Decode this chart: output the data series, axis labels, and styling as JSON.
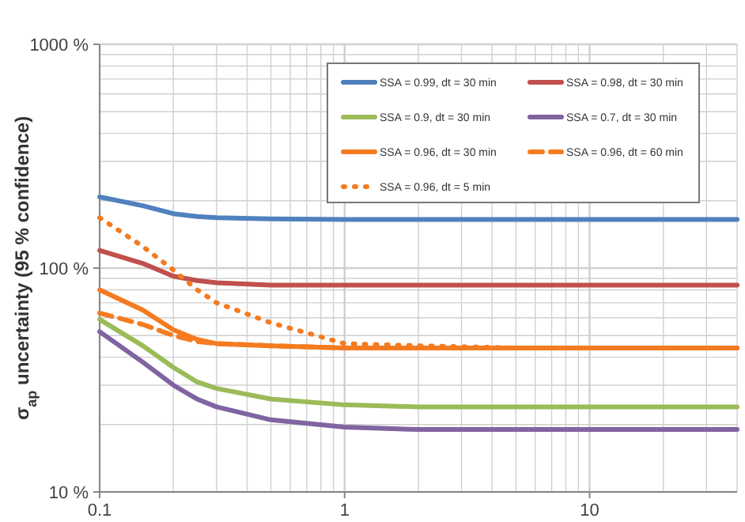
{
  "chart_data": {
    "type": "line",
    "ylabel": "σ$_{ap}$ uncertainty (95 % confidence)",
    "log": "xy",
    "grid": true,
    "legend": "top right",
    "xlim": [
      0.1,
      40
    ],
    "ylim": [
      10,
      1000
    ],
    "xticks": [
      0.1,
      1,
      10
    ],
    "yticks": [
      {
        "value": 10,
        "label": "10 %"
      },
      {
        "value": 100,
        "label": "100 %"
      },
      {
        "value": 1000,
        "label": "1000 %"
      }
    ],
    "x": [
      0.1,
      0.15,
      0.2,
      0.25,
      0.3,
      0.5,
      1,
      2,
      5,
      10,
      40
    ],
    "series": [
      {
        "name": "SSA = 0.99, dt = 30 min",
        "color": "#4f81bd",
        "values": [
          208,
          190,
          175,
          170,
          168,
          166,
          165,
          165,
          165,
          165,
          165
        ]
      },
      {
        "name": "SSA = 0.98, dt = 30 min",
        "color": "#c0504d",
        "values": [
          120,
          105,
          92,
          88,
          86,
          84,
          84,
          84,
          84,
          84,
          84
        ]
      },
      {
        "name": "SSA = 0.9, dt = 30 min",
        "color": "#9bbb59",
        "values": [
          59,
          45,
          36,
          31,
          29,
          26,
          24.5,
          24,
          24,
          24,
          24
        ]
      },
      {
        "name": "SSA = 0.7, dt = 30 min",
        "color": "#8064a2",
        "values": [
          52,
          38,
          30,
          26,
          24,
          21,
          19.5,
          19,
          19,
          19,
          19
        ]
      },
      {
        "name": "SSA = 0.96, dt = 30 min",
        "color": "#f47b20",
        "values": [
          80,
          65,
          53,
          48,
          46,
          45,
          44,
          44,
          44,
          44,
          44
        ]
      },
      {
        "name": "SSA = 0.96, dt = 60 min",
        "color": "#f47b20",
        "line_style": "dashed",
        "values": [
          63,
          56,
          50,
          47,
          46,
          45,
          44,
          44,
          44,
          44,
          44
        ]
      },
      {
        "name": "SSA = 0.96, dt = 5 min",
        "color": "#f47b20",
        "line_style": "dotted",
        "values": [
          168,
          125,
          98,
          80,
          70,
          57,
          46,
          45,
          44,
          44,
          44
        ]
      }
    ]
  }
}
